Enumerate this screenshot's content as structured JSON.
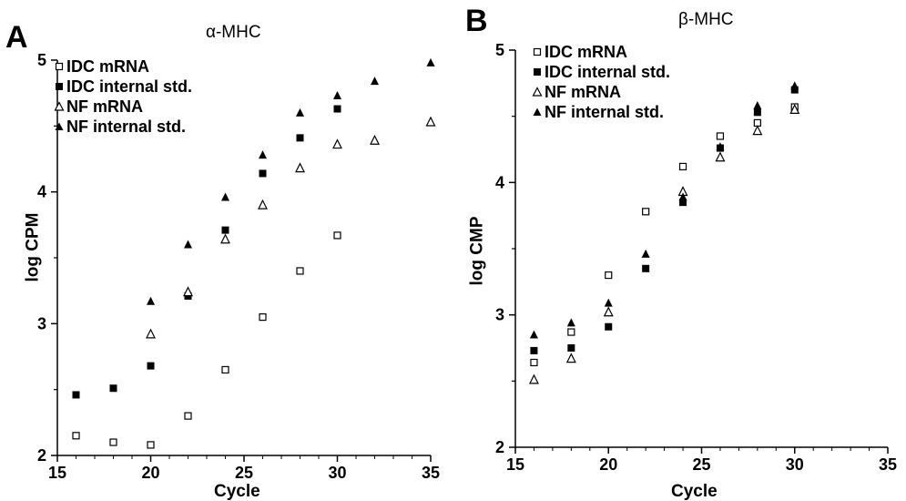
{
  "chart_data": [
    {
      "type": "scatter",
      "panel_letter": "A",
      "title": "α-MHC",
      "xlabel": "Cycle",
      "ylabel": "log CPM",
      "xlim": [
        15,
        35
      ],
      "ylim": [
        2,
        5
      ],
      "xticks": [
        15,
        20,
        25,
        30,
        35
      ],
      "yticks": [
        2,
        3,
        4,
        5
      ],
      "legend_position": "top-left",
      "series": [
        {
          "name": "IDC mRNA",
          "marker": "square-open",
          "points": [
            [
              16,
              2.15
            ],
            [
              18,
              2.1
            ],
            [
              20,
              2.08
            ],
            [
              22,
              2.3
            ],
            [
              24,
              2.65
            ],
            [
              26,
              3.05
            ],
            [
              28,
              3.4
            ],
            [
              30,
              3.67
            ]
          ]
        },
        {
          "name": "IDC internal std.",
          "marker": "square-filled",
          "points": [
            [
              16,
              2.46
            ],
            [
              18,
              2.51
            ],
            [
              20,
              2.68
            ],
            [
              22,
              3.21
            ],
            [
              24,
              3.71
            ],
            [
              26,
              4.14
            ],
            [
              28,
              4.41
            ],
            [
              30,
              4.63
            ]
          ]
        },
        {
          "name": "NF mRNA",
          "marker": "triangle-open",
          "points": [
            [
              20,
              2.92
            ],
            [
              22,
              3.24
            ],
            [
              24,
              3.64
            ],
            [
              26,
              3.9
            ],
            [
              28,
              4.18
            ],
            [
              30,
              4.36
            ],
            [
              32,
              4.39
            ],
            [
              35,
              4.53
            ]
          ]
        },
        {
          "name": "NF internal std.",
          "marker": "triangle-filled",
          "points": [
            [
              20,
              3.17
            ],
            [
              22,
              3.6
            ],
            [
              24,
              3.96
            ],
            [
              26,
              4.28
            ],
            [
              28,
              4.6
            ],
            [
              30,
              4.73
            ],
            [
              32,
              4.84
            ],
            [
              35,
              4.98
            ]
          ]
        }
      ]
    },
    {
      "type": "scatter",
      "panel_letter": "B",
      "title": "β-MHC",
      "xlabel": "Cycle",
      "ylabel": "log CMP",
      "xlim": [
        15,
        35
      ],
      "ylim": [
        2,
        5
      ],
      "xticks": [
        15,
        20,
        25,
        30,
        35
      ],
      "yticks": [
        2,
        3,
        4,
        5
      ],
      "legend_position": "top-left",
      "series": [
        {
          "name": "IDC mRNA",
          "marker": "square-open",
          "points": [
            [
              16,
              2.64
            ],
            [
              18,
              2.87
            ],
            [
              20,
              3.3
            ],
            [
              22,
              3.78
            ],
            [
              24,
              4.12
            ],
            [
              26,
              4.35
            ],
            [
              28,
              4.45
            ],
            [
              30,
              4.57
            ]
          ]
        },
        {
          "name": "IDC internal std.",
          "marker": "square-filled",
          "points": [
            [
              16,
              2.73
            ],
            [
              18,
              2.75
            ],
            [
              20,
              2.91
            ],
            [
              22,
              3.35
            ],
            [
              24,
              3.85
            ],
            [
              26,
              4.26
            ],
            [
              28,
              4.53
            ],
            [
              30,
              4.7
            ]
          ]
        },
        {
          "name": "NF mRNA",
          "marker": "triangle-open",
          "points": [
            [
              16,
              2.51
            ],
            [
              18,
              2.67
            ],
            [
              20,
              3.02
            ],
            [
              24,
              3.93
            ],
            [
              26,
              4.19
            ],
            [
              28,
              4.39
            ],
            [
              30,
              4.55
            ]
          ]
        },
        {
          "name": "NF internal std.",
          "marker": "triangle-filled",
          "points": [
            [
              16,
              2.85
            ],
            [
              18,
              2.94
            ],
            [
              20,
              3.09
            ],
            [
              22,
              3.46
            ],
            [
              24,
              3.89
            ],
            [
              26,
              4.27
            ],
            [
              28,
              4.58
            ],
            [
              30,
              4.73
            ]
          ]
        }
      ]
    }
  ]
}
